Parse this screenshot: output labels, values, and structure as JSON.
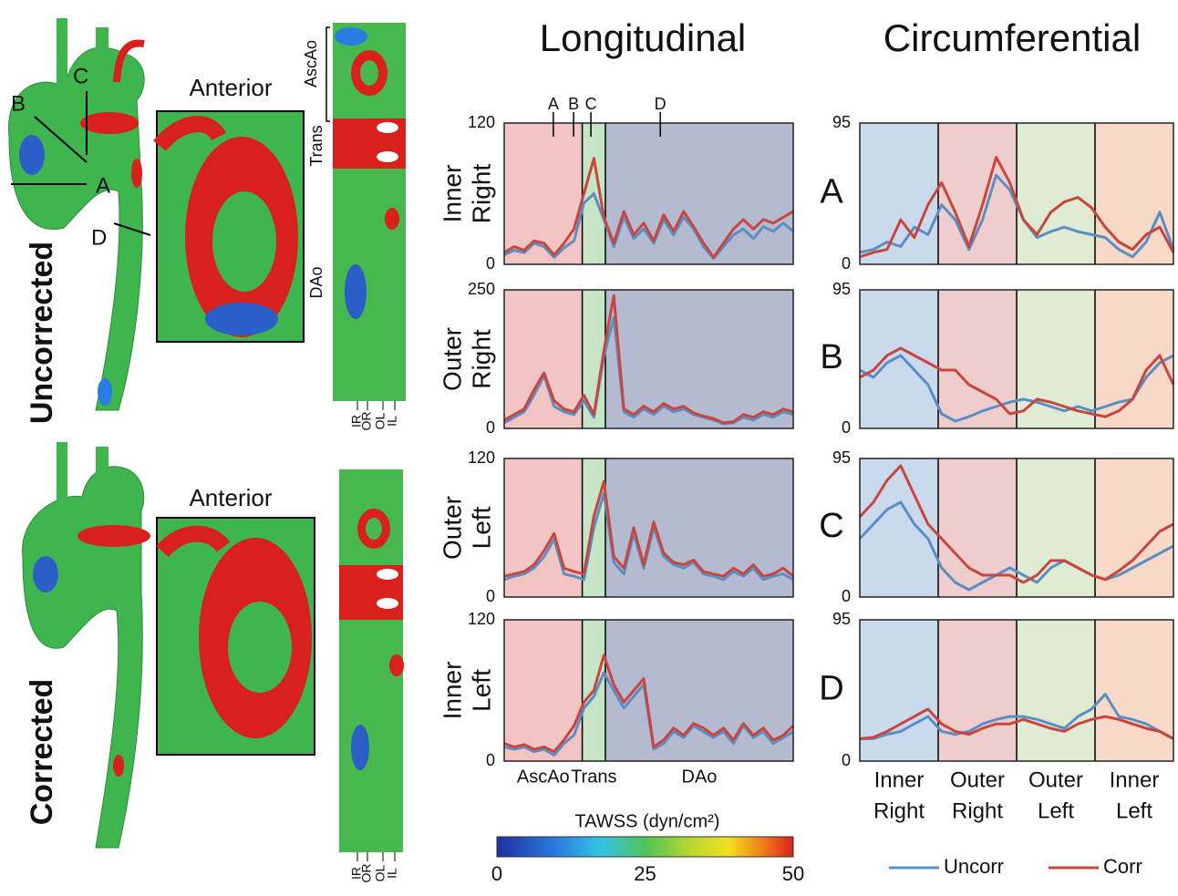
{
  "column_titles": [
    "Longitudinal",
    "Circumferential"
  ],
  "panels": [
    {
      "label": "Uncorrected",
      "view_label": "Anterior",
      "section_labels": [
        "A",
        "B",
        "C",
        "D"
      ],
      "strip_regions": [
        "AscAo",
        "Trans",
        "DAo"
      ],
      "strip_columns": [
        "IR",
        "OR",
        "OL",
        "IL"
      ]
    },
    {
      "label": "Corrected",
      "view_label": "Anterior",
      "strip_columns": [
        "IR",
        "OR",
        "OL",
        "IL"
      ]
    }
  ],
  "colorbar": {
    "title": "TAWSS (dyn/cm²)",
    "lim": [
      0,
      50
    ],
    "ticks": [
      0,
      25,
      50
    ]
  },
  "chart_data": [
    {
      "type": "line",
      "ylabel": [
        "Inner",
        "Right"
      ],
      "xlim": [
        0,
        100
      ],
      "ylim": [
        0,
        120
      ],
      "yticks": [
        0,
        120
      ],
      "regions": [
        {
          "from": 0,
          "to": 27,
          "color": "#f2c4c4"
        },
        {
          "from": 27,
          "to": 35,
          "color": "#c6e4c6"
        },
        {
          "from": 35,
          "to": 100,
          "color": "#b4bbd0"
        }
      ],
      "markers": [
        {
          "label": "A",
          "x": 17
        },
        {
          "label": "B",
          "x": 24
        },
        {
          "label": "C",
          "x": 30
        },
        {
          "label": "D",
          "x": 54
        }
      ],
      "series": [
        {
          "name": "Uncorr",
          "color": "#5a8fc4",
          "values": [
            8,
            12,
            10,
            18,
            15,
            6,
            14,
            20,
            52,
            60,
            38,
            15,
            40,
            22,
            30,
            18,
            38,
            25,
            40,
            30,
            15,
            5,
            15,
            25,
            30,
            22,
            32,
            28,
            35,
            28
          ]
        },
        {
          "name": "Corr",
          "color": "#c8463e",
          "values": [
            10,
            15,
            12,
            20,
            18,
            8,
            18,
            30,
            60,
            90,
            40,
            18,
            45,
            25,
            35,
            20,
            42,
            28,
            45,
            32,
            18,
            6,
            18,
            30,
            38,
            30,
            38,
            35,
            40,
            45
          ]
        }
      ]
    },
    {
      "type": "line",
      "ylabel": [
        "Outer",
        "Right"
      ],
      "xlim": [
        0,
        100
      ],
      "ylim": [
        0,
        250
      ],
      "yticks": [
        0,
        250
      ],
      "regions": [
        {
          "from": 0,
          "to": 27,
          "color": "#f2c4c4"
        },
        {
          "from": 27,
          "to": 35,
          "color": "#c6e4c6"
        },
        {
          "from": 35,
          "to": 100,
          "color": "#b4bbd0"
        }
      ],
      "series": [
        {
          "name": "Uncorr",
          "color": "#5a8fc4",
          "values": [
            10,
            20,
            30,
            60,
            95,
            40,
            30,
            25,
            50,
            20,
            130,
            200,
            30,
            20,
            35,
            25,
            40,
            30,
            35,
            25,
            20,
            15,
            8,
            10,
            20,
            15,
            25,
            20,
            30,
            25
          ]
        },
        {
          "name": "Corr",
          "color": "#c8463e",
          "values": [
            15,
            25,
            35,
            70,
            100,
            50,
            35,
            30,
            60,
            25,
            140,
            240,
            35,
            25,
            40,
            30,
            45,
            35,
            40,
            28,
            22,
            18,
            10,
            12,
            25,
            20,
            30,
            25,
            35,
            30
          ]
        }
      ]
    },
    {
      "type": "line",
      "ylabel": [
        "Outer",
        "Left"
      ],
      "xlim": [
        0,
        100
      ],
      "ylim": [
        0,
        120
      ],
      "yticks": [
        0,
        120
      ],
      "regions": [
        {
          "from": 0,
          "to": 27,
          "color": "#f2c4c4"
        },
        {
          "from": 27,
          "to": 35,
          "color": "#c6e4c6"
        },
        {
          "from": 35,
          "to": 100,
          "color": "#b4bbd0"
        }
      ],
      "series": [
        {
          "name": "Uncorr",
          "color": "#5a8fc4",
          "values": [
            15,
            18,
            20,
            25,
            35,
            50,
            20,
            18,
            15,
            60,
            90,
            30,
            20,
            55,
            25,
            60,
            35,
            28,
            25,
            30,
            20,
            18,
            15,
            22,
            18,
            25,
            15,
            18,
            20,
            15
          ]
        },
        {
          "name": "Corr",
          "color": "#c8463e",
          "values": [
            18,
            20,
            22,
            28,
            40,
            55,
            25,
            22,
            20,
            70,
            100,
            35,
            25,
            60,
            28,
            65,
            38,
            30,
            28,
            32,
            22,
            20,
            18,
            25,
            20,
            28,
            18,
            20,
            25,
            18
          ]
        }
      ]
    },
    {
      "type": "line",
      "ylabel": [
        "Inner",
        "Left"
      ],
      "xlim": [
        0,
        100
      ],
      "ylim": [
        0,
        120
      ],
      "yticks": [
        0,
        120
      ],
      "regions": [
        {
          "from": 0,
          "to": 27,
          "color": "#f2c4c4",
          "label": "AscAo"
        },
        {
          "from": 27,
          "to": 35,
          "color": "#c6e4c6",
          "label": "Trans"
        },
        {
          "from": 35,
          "to": 100,
          "color": "#b4bbd0",
          "label": "DAo"
        }
      ],
      "series": [
        {
          "name": "Uncorr",
          "color": "#5a8fc4",
          "values": [
            12,
            10,
            12,
            8,
            10,
            5,
            15,
            22,
            45,
            55,
            75,
            60,
            45,
            55,
            65,
            10,
            15,
            25,
            20,
            30,
            25,
            20,
            25,
            15,
            30,
            20,
            25,
            15,
            20,
            25
          ]
        },
        {
          "name": "Corr",
          "color": "#c8463e",
          "values": [
            15,
            12,
            14,
            10,
            12,
            8,
            18,
            30,
            50,
            60,
            90,
            65,
            50,
            60,
            70,
            12,
            18,
            28,
            22,
            32,
            28,
            22,
            28,
            18,
            32,
            22,
            28,
            18,
            22,
            30
          ]
        }
      ]
    },
    {
      "type": "line",
      "label": "A",
      "xlim": [
        0,
        100
      ],
      "ylim": [
        0,
        95
      ],
      "yticks": [
        0,
        95
      ],
      "regions": [
        {
          "from": 0,
          "to": 25,
          "color": "#cbd9ee"
        },
        {
          "from": 25,
          "to": 50,
          "color": "#f0cdcd"
        },
        {
          "from": 50,
          "to": 75,
          "color": "#dfecd3"
        },
        {
          "from": 75,
          "to": 100,
          "color": "#f8d8c6"
        }
      ],
      "series": [
        {
          "name": "Uncorr",
          "color": "#5a8fc4",
          "values": [
            8,
            10,
            15,
            12,
            25,
            20,
            40,
            30,
            10,
            30,
            60,
            50,
            30,
            18,
            22,
            25,
            22,
            20,
            18,
            10,
            5,
            15,
            35,
            10
          ]
        },
        {
          "name": "Corr",
          "color": "#c8463e",
          "values": [
            5,
            8,
            10,
            30,
            18,
            40,
            55,
            35,
            12,
            40,
            72,
            55,
            30,
            20,
            35,
            42,
            45,
            38,
            25,
            15,
            10,
            20,
            25,
            8
          ]
        }
      ]
    },
    {
      "type": "line",
      "label": "B",
      "xlim": [
        0,
        100
      ],
      "ylim": [
        0,
        95
      ],
      "yticks": [
        0,
        95
      ],
      "regions": [
        {
          "from": 0,
          "to": 25,
          "color": "#cbd9ee"
        },
        {
          "from": 25,
          "to": 50,
          "color": "#f0cdcd"
        },
        {
          "from": 50,
          "to": 75,
          "color": "#dfecd3"
        },
        {
          "from": 75,
          "to": 100,
          "color": "#f8d8c6"
        }
      ],
      "series": [
        {
          "name": "Uncorr",
          "color": "#5a8fc4",
          "values": [
            40,
            35,
            45,
            50,
            40,
            30,
            10,
            5,
            8,
            12,
            15,
            18,
            20,
            18,
            15,
            12,
            15,
            12,
            15,
            18,
            20,
            35,
            45,
            50
          ]
        },
        {
          "name": "Corr",
          "color": "#c8463e",
          "values": [
            35,
            40,
            50,
            55,
            50,
            45,
            40,
            40,
            30,
            25,
            20,
            10,
            12,
            20,
            18,
            15,
            12,
            10,
            8,
            12,
            20,
            40,
            50,
            30
          ]
        }
      ]
    },
    {
      "type": "line",
      "label": "C",
      "xlim": [
        0,
        100
      ],
      "ylim": [
        0,
        95
      ],
      "yticks": [
        0,
        95
      ],
      "regions": [
        {
          "from": 0,
          "to": 25,
          "color": "#cbd9ee"
        },
        {
          "from": 25,
          "to": 50,
          "color": "#f0cdcd"
        },
        {
          "from": 50,
          "to": 75,
          "color": "#dfecd3"
        },
        {
          "from": 75,
          "to": 100,
          "color": "#f8d8c6"
        }
      ],
      "series": [
        {
          "name": "Uncorr",
          "color": "#5a8fc4",
          "values": [
            40,
            50,
            60,
            65,
            50,
            40,
            20,
            10,
            5,
            10,
            15,
            20,
            15,
            10,
            20,
            25,
            20,
            15,
            12,
            15,
            20,
            25,
            30,
            35
          ]
        },
        {
          "name": "Corr",
          "color": "#c8463e",
          "values": [
            55,
            65,
            80,
            90,
            70,
            50,
            40,
            30,
            20,
            15,
            15,
            15,
            10,
            15,
            25,
            25,
            20,
            15,
            12,
            18,
            25,
            35,
            45,
            50
          ]
        }
      ]
    },
    {
      "type": "line",
      "label": "D",
      "xlim": [
        0,
        100
      ],
      "ylim": [
        0,
        95
      ],
      "yticks": [
        0,
        95
      ],
      "regions": [
        {
          "from": 0,
          "to": 25,
          "color": "#cbd9ee",
          "label": [
            "Inner",
            "Right"
          ]
        },
        {
          "from": 25,
          "to": 50,
          "color": "#f0cdcd",
          "label": [
            "Outer",
            "Right"
          ]
        },
        {
          "from": 50,
          "to": 75,
          "color": "#dfecd3",
          "label": [
            "Outer",
            "Left"
          ]
        },
        {
          "from": 75,
          "to": 100,
          "color": "#f8d8c6",
          "label": [
            "Inner",
            "Left"
          ]
        }
      ],
      "series": [
        {
          "name": "Uncorr",
          "color": "#5a8fc4",
          "values": [
            15,
            15,
            18,
            20,
            25,
            30,
            20,
            18,
            20,
            25,
            28,
            30,
            30,
            28,
            25,
            22,
            30,
            35,
            45,
            30,
            28,
            25,
            20,
            15
          ]
        },
        {
          "name": "Corr",
          "color": "#c8463e",
          "values": [
            15,
            16,
            20,
            25,
            30,
            35,
            25,
            20,
            18,
            22,
            25,
            25,
            28,
            25,
            22,
            20,
            25,
            28,
            30,
            28,
            25,
            22,
            20,
            15
          ]
        }
      ]
    }
  ]
}
